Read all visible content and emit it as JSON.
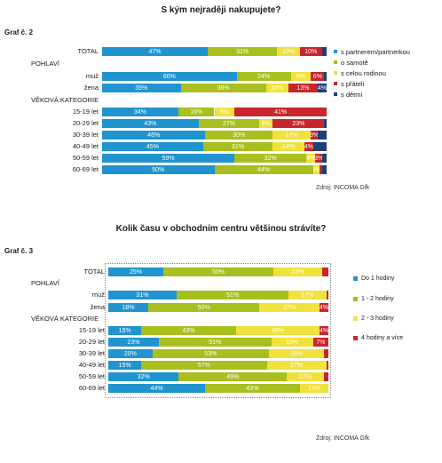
{
  "chart_data": [
    {
      "type": "bar",
      "stacked": true,
      "orientation": "horizontal",
      "title": "S kým nejraději nakupujete?",
      "graf_label": "Graf č. 2",
      "source": "Zdroj: INCOMA Gfk",
      "xlim": [
        0,
        100
      ],
      "grid": false,
      "legend_position": "right",
      "rows": [
        {
          "label": "TOTAL",
          "values": [
            47,
            31,
            10,
            10,
            2
          ]
        },
        {
          "label": "POHLAVÍ",
          "category": true
        },
        {
          "label": "muž",
          "values": [
            60,
            24,
            9,
            6,
            1
          ]
        },
        {
          "label": "žena",
          "values": [
            35,
            38,
            10,
            13,
            4
          ]
        },
        {
          "label": "VĚKOVÁ KATEGORIE",
          "category": true
        },
        {
          "label": "15-19 let",
          "values": [
            34,
            16,
            9,
            41,
            0
          ]
        },
        {
          "label": "20-29 let",
          "values": [
            43,
            27,
            6,
            23,
            1
          ]
        },
        {
          "label": "30-39 let",
          "values": [
            46,
            30,
            17,
            3,
            4
          ]
        },
        {
          "label": "40-49 let",
          "values": [
            45,
            31,
            14,
            4,
            6
          ]
        },
        {
          "label": "50-59 let",
          "values": [
            59,
            32,
            4,
            3,
            2
          ]
        },
        {
          "label": "60-69 let",
          "values": [
            50,
            44,
            3,
            1,
            2
          ]
        }
      ],
      "series": [
        {
          "name": "s partnerem/partnerkou",
          "color": "#1f94cf"
        },
        {
          "name": "o samotě",
          "color": "#a8bf1e"
        },
        {
          "name": "s celou rodinou",
          "color": "#f0e23a"
        },
        {
          "name": "s přáteli",
          "color": "#c8252c"
        },
        {
          "name": "s dětmi",
          "color": "#1f3f7a"
        }
      ],
      "value_labels": {
        "TOTAL": [
          "47%",
          "31%",
          "10%",
          "10%",
          ""
        ],
        "muž": [
          "60%",
          "24%",
          "9%",
          "6%",
          ""
        ],
        "žena": [
          "35%",
          "38%",
          "10%",
          "13%",
          "4%"
        ],
        "15-19 let": [
          "34%",
          "16%",
          "9%",
          "41%",
          ""
        ],
        "20-29 let": [
          "43%",
          "27%",
          "6%",
          "23%",
          ""
        ],
        "30-39 let": [
          "46%",
          "30%",
          "17%",
          "3%",
          ""
        ],
        "40-49 let": [
          "45%",
          "31%",
          "14%",
          "4%",
          ""
        ],
        "50-59 let": [
          "59%",
          "32%",
          "4%",
          "3%",
          ""
        ],
        "60-69 let": [
          "50%",
          "44%",
          "3%",
          "",
          ""
        ]
      }
    },
    {
      "type": "bar",
      "stacked": true,
      "orientation": "horizontal",
      "title": "Kolik času v obchodním centru většinou strávíte?",
      "graf_label": "Graf č. 3",
      "source": "Zdroj: INCOMA Gfk",
      "xlim": [
        0,
        100
      ],
      "grid": false,
      "legend_position": "right",
      "rows": [
        {
          "label": "TOTAL",
          "values": [
            25,
            50,
            22,
            3
          ]
        },
        {
          "label": "POHLAVÍ",
          "category": true
        },
        {
          "label": "muž",
          "values": [
            31,
            51,
            17,
            1
          ]
        },
        {
          "label": "žena",
          "values": [
            18,
            50,
            27,
            4
          ]
        },
        {
          "label": "VĚKOVÁ KATEGORIE",
          "category": true
        },
        {
          "label": "15-19 let",
          "values": [
            15,
            43,
            38,
            4
          ]
        },
        {
          "label": "20-29 let",
          "values": [
            23,
            51,
            19,
            7
          ]
        },
        {
          "label": "30-39 let",
          "values": [
            20,
            53,
            25,
            2
          ]
        },
        {
          "label": "40-49 let",
          "values": [
            15,
            57,
            27,
            1
          ]
        },
        {
          "label": "50-59 let",
          "values": [
            32,
            49,
            17,
            2
          ]
        },
        {
          "label": "60-69 let",
          "values": [
            44,
            43,
            13,
            0
          ]
        }
      ],
      "series": [
        {
          "name": "Do 1 hodiny",
          "color": "#1f94cf"
        },
        {
          "name": "1 - 2 hodiny",
          "color": "#a8bf1e"
        },
        {
          "name": "2 - 3 hodiny",
          "color": "#f0e23a"
        },
        {
          "name": "4 hodiny a více",
          "color": "#c8252c"
        }
      ],
      "value_labels": {
        "TOTAL": [
          "25%",
          "50%",
          "22%",
          ""
        ],
        "muž": [
          "31%",
          "51%",
          "17%",
          ""
        ],
        "žena": [
          "18%",
          "50%",
          "27%",
          "4%"
        ],
        "15-19 let": [
          "15%",
          "43%",
          "38%",
          "4%"
        ],
        "20-29 let": [
          "23%",
          "51%",
          "19%",
          "7%"
        ],
        "30-39 let": [
          "20%",
          "53%",
          "25%",
          ""
        ],
        "40-49 let": [
          "15%",
          "57%",
          "27%",
          ""
        ],
        "50-59 let": [
          "32%",
          "49%",
          "17%",
          ""
        ],
        "60-69 let": [
          "44%",
          "43%",
          "13%",
          ""
        ]
      }
    }
  ]
}
